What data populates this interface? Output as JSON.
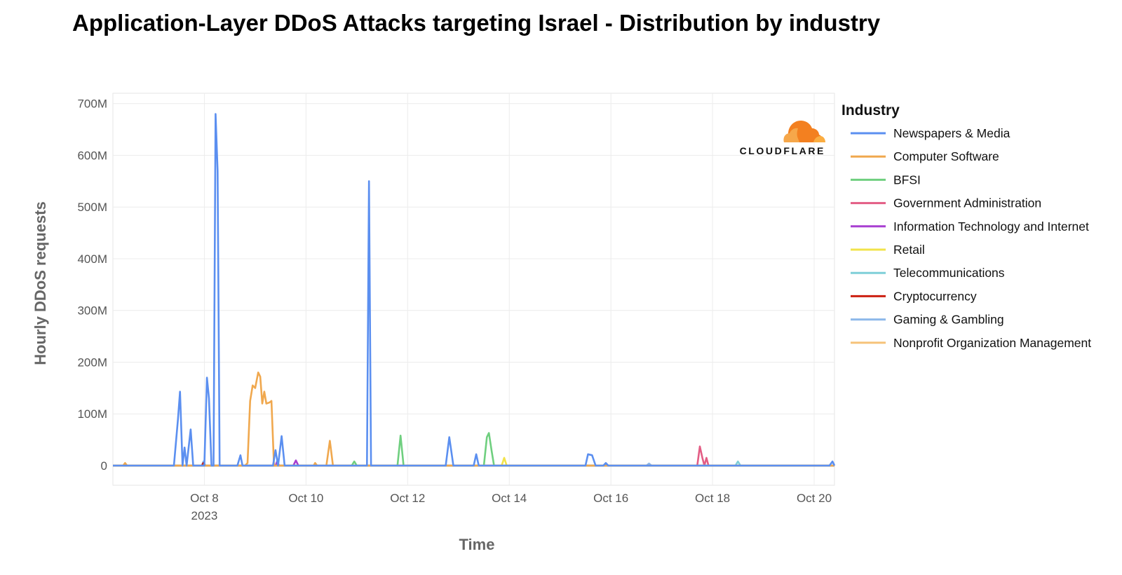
{
  "chart_data": {
    "type": "line",
    "title": "Application-Layer DDoS Attacks targeting Israel - Distribution by industry",
    "xlabel": "Time",
    "ylabel": "Hourly DDoS requests",
    "x_ticks": [
      "Oct 8",
      "Oct 10",
      "Oct 12",
      "Oct 14",
      "Oct 16",
      "Oct 18",
      "Oct 20"
    ],
    "x_tick_values": [
      8,
      10,
      12,
      14,
      16,
      18,
      20
    ],
    "x_year_label": "2023",
    "xlim": [
      6.2,
      20.4
    ],
    "y_ticks": [
      "0",
      "100M",
      "200M",
      "300M",
      "400M",
      "500M",
      "600M",
      "700M"
    ],
    "y_tick_values": [
      0,
      100,
      200,
      300,
      400,
      500,
      600,
      700
    ],
    "ylim": [
      -38,
      720
    ],
    "y_unit": "M",
    "grid": true,
    "legend_title": "Industry",
    "legend_position": "right",
    "logo_text": "CLOUDFLARE",
    "series": [
      {
        "name": "Newspapers & Media",
        "color": "#5b8ff0",
        "points": [
          [
            6.2,
            0
          ],
          [
            7.3,
            0
          ],
          [
            7.4,
            0
          ],
          [
            7.48,
            90
          ],
          [
            7.52,
            143
          ],
          [
            7.57,
            0
          ],
          [
            7.61,
            35
          ],
          [
            7.65,
            0
          ],
          [
            7.73,
            70
          ],
          [
            7.78,
            0
          ],
          [
            8.0,
            0
          ],
          [
            8.05,
            170
          ],
          [
            8.09,
            130
          ],
          [
            8.14,
            0
          ],
          [
            8.18,
            0
          ],
          [
            8.22,
            680
          ],
          [
            8.26,
            570
          ],
          [
            8.3,
            0
          ],
          [
            8.65,
            0
          ],
          [
            8.71,
            20
          ],
          [
            8.75,
            0
          ],
          [
            9.35,
            0
          ],
          [
            9.4,
            30
          ],
          [
            9.45,
            0
          ],
          [
            9.52,
            57
          ],
          [
            9.58,
            0
          ],
          [
            11.2,
            0
          ],
          [
            11.24,
            550
          ],
          [
            11.28,
            0
          ],
          [
            12.75,
            0
          ],
          [
            12.82,
            55
          ],
          [
            12.9,
            0
          ],
          [
            13.3,
            0
          ],
          [
            13.35,
            22
          ],
          [
            13.4,
            0
          ],
          [
            15.5,
            0
          ],
          [
            15.55,
            22
          ],
          [
            15.63,
            20
          ],
          [
            15.7,
            0
          ],
          [
            15.85,
            0
          ],
          [
            15.9,
            5
          ],
          [
            15.95,
            0
          ],
          [
            20.3,
            0
          ],
          [
            20.36,
            8
          ],
          [
            20.4,
            0
          ]
        ]
      },
      {
        "name": "Computer Software",
        "color": "#f0a84e",
        "points": [
          [
            6.2,
            0
          ],
          [
            6.4,
            0
          ],
          [
            6.44,
            5
          ],
          [
            6.48,
            0
          ],
          [
            8.8,
            0
          ],
          [
            8.85,
            5
          ],
          [
            8.9,
            125
          ],
          [
            8.95,
            155
          ],
          [
            9.0,
            150
          ],
          [
            9.06,
            180
          ],
          [
            9.1,
            172
          ],
          [
            9.14,
            120
          ],
          [
            9.18,
            143
          ],
          [
            9.22,
            120
          ],
          [
            9.28,
            122
          ],
          [
            9.32,
            125
          ],
          [
            9.37,
            0
          ],
          [
            10.15,
            0
          ],
          [
            10.18,
            5
          ],
          [
            10.22,
            0
          ],
          [
            10.4,
            0
          ],
          [
            10.47,
            48
          ],
          [
            10.53,
            0
          ],
          [
            20.4,
            0
          ]
        ]
      },
      {
        "name": "BFSI",
        "color": "#6fcf7f",
        "points": [
          [
            6.2,
            0
          ],
          [
            10.9,
            0
          ],
          [
            10.95,
            8
          ],
          [
            11.0,
            0
          ],
          [
            11.8,
            0
          ],
          [
            11.86,
            58
          ],
          [
            11.92,
            0
          ],
          [
            13.5,
            0
          ],
          [
            13.56,
            55
          ],
          [
            13.6,
            63
          ],
          [
            13.65,
            30
          ],
          [
            13.7,
            0
          ],
          [
            20.4,
            0
          ]
        ]
      },
      {
        "name": "Government Administration",
        "color": "#e35d85",
        "points": [
          [
            6.2,
            0
          ],
          [
            17.7,
            0
          ],
          [
            17.75,
            37
          ],
          [
            17.8,
            15
          ],
          [
            17.84,
            0
          ],
          [
            17.88,
            15
          ],
          [
            17.92,
            0
          ],
          [
            20.4,
            0
          ]
        ]
      },
      {
        "name": "Information Technology and Internet",
        "color": "#a83fd1",
        "points": [
          [
            6.2,
            0
          ],
          [
            9.4,
            0
          ],
          [
            9.43,
            8
          ],
          [
            9.47,
            0
          ],
          [
            9.75,
            0
          ],
          [
            9.8,
            10
          ],
          [
            9.85,
            0
          ],
          [
            20.4,
            0
          ]
        ]
      },
      {
        "name": "Retail",
        "color": "#f2e34a",
        "points": [
          [
            6.2,
            0
          ],
          [
            13.85,
            0
          ],
          [
            13.9,
            15
          ],
          [
            13.95,
            0
          ],
          [
            20.4,
            0
          ]
        ]
      },
      {
        "name": "Telecommunications",
        "color": "#7fcfd8",
        "points": [
          [
            6.2,
            0
          ],
          [
            18.45,
            0
          ],
          [
            18.5,
            8
          ],
          [
            18.55,
            0
          ],
          [
            20.4,
            0
          ]
        ]
      },
      {
        "name": "Cryptocurrency",
        "color": "#cc1f10",
        "points": [
          [
            6.2,
            0
          ],
          [
            7.95,
            0
          ],
          [
            7.98,
            5
          ],
          [
            8.01,
            0
          ],
          [
            20.4,
            0
          ]
        ]
      },
      {
        "name": "Gaming & Gambling",
        "color": "#8db8ea",
        "points": [
          [
            6.2,
            0
          ],
          [
            7.95,
            0
          ],
          [
            7.98,
            8
          ],
          [
            8.02,
            0
          ],
          [
            16.7,
            0
          ],
          [
            16.75,
            4
          ],
          [
            16.8,
            0
          ],
          [
            20.4,
            0
          ]
        ]
      },
      {
        "name": "Nonprofit Organization Management",
        "color": "#f6c37a",
        "points": [
          [
            6.2,
            0
          ],
          [
            20.4,
            0
          ]
        ]
      }
    ]
  }
}
